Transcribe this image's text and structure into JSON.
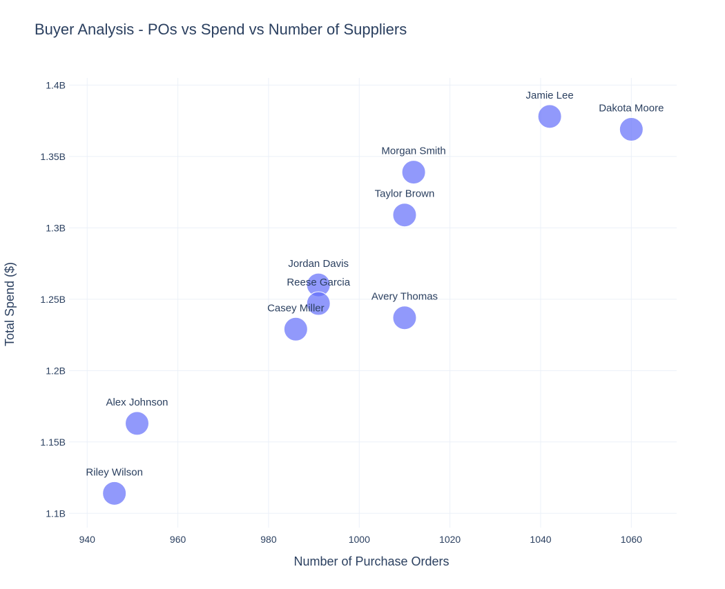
{
  "chart_data": {
    "type": "scatter",
    "title": "Buyer Analysis - POs vs Spend vs Number of Suppliers",
    "xlabel": "Number of Purchase Orders",
    "ylabel": "Total Spend ($)",
    "xlim": [
      936,
      1070
    ],
    "ylim": [
      1.09,
      1.405
    ],
    "x_ticks": [
      940,
      960,
      980,
      1000,
      1020,
      1040,
      1060
    ],
    "y_ticks": [
      {
        "value": 1.1,
        "label": "1.1B"
      },
      {
        "value": 1.15,
        "label": "1.15B"
      },
      {
        "value": 1.2,
        "label": "1.2B"
      },
      {
        "value": 1.25,
        "label": "1.25B"
      },
      {
        "value": 1.3,
        "label": "1.3B"
      },
      {
        "value": 1.35,
        "label": "1.35B"
      },
      {
        "value": 1.4,
        "label": "1.4B"
      }
    ],
    "grid": true,
    "marker_color": "#636efa",
    "points": [
      {
        "label": "Riley Wilson",
        "x": 946,
        "y": 1.114
      },
      {
        "label": "Alex Johnson",
        "x": 951,
        "y": 1.163
      },
      {
        "label": "Casey Miller",
        "x": 986,
        "y": 1.229
      },
      {
        "label": "Jordan Davis",
        "x": 991,
        "y": 1.26
      },
      {
        "label": "Reese Garcia",
        "x": 991,
        "y": 1.247
      },
      {
        "label": "Avery Thomas",
        "x": 1010,
        "y": 1.237
      },
      {
        "label": "Taylor Brown",
        "x": 1010,
        "y": 1.309
      },
      {
        "label": "Morgan Smith",
        "x": 1012,
        "y": 1.339
      },
      {
        "label": "Jamie Lee",
        "x": 1042,
        "y": 1.378
      },
      {
        "label": "Dakota Moore",
        "x": 1060,
        "y": 1.369
      }
    ]
  }
}
